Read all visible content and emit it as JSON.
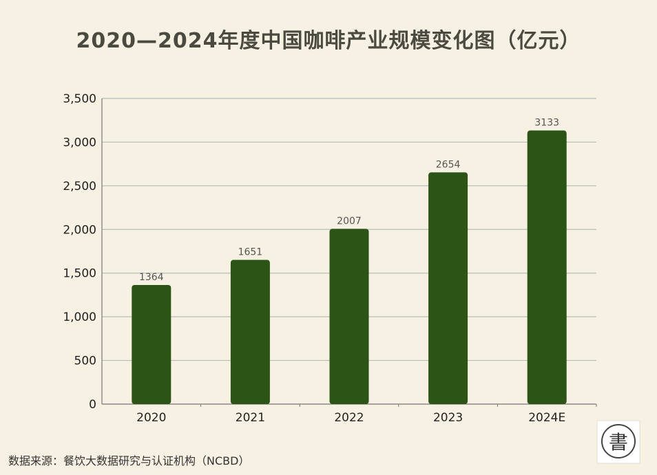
{
  "title": "2020—2024年度中国咖啡产业规模变化图（亿元）",
  "source": "数据来源：餐饮大数据研究与认证机构（NCBD）",
  "seal": {
    "glyph": "書"
  },
  "colors": {
    "bar": "#2b5416",
    "grid": "#b6bdb8",
    "background": "#f7f1e3"
  },
  "chart_data": {
    "type": "bar",
    "title": "2020—2024年度中国咖啡产业规模变化图（亿元）",
    "categories": [
      "2020",
      "2021",
      "2022",
      "2023",
      "2024E"
    ],
    "values": [
      1364,
      1651,
      2007,
      2654,
      3133
    ],
    "data_labels": [
      "1364",
      "1651",
      "2007",
      "2654",
      "3133"
    ],
    "ylim": [
      0,
      3500
    ],
    "yticks": [
      0,
      500,
      1000,
      1500,
      2000,
      2500,
      3000,
      3500
    ],
    "ytick_labels": [
      "0",
      "500",
      "1,000",
      "1,500",
      "2,000",
      "2,500",
      "3,000",
      "3,500"
    ],
    "xlabel": "",
    "ylabel": "",
    "grid": true,
    "legend": "none"
  }
}
